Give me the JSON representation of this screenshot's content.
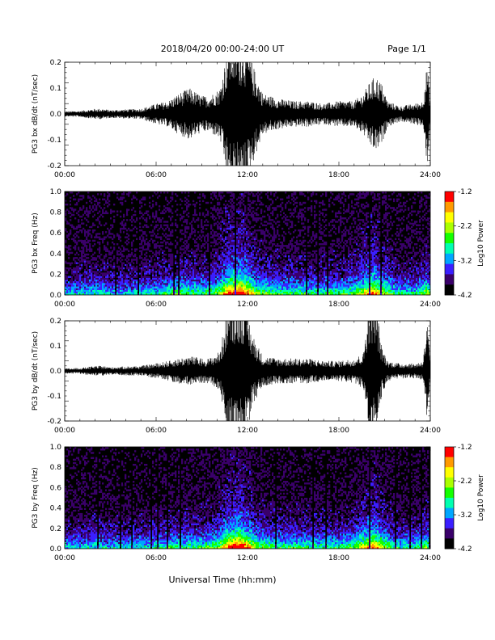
{
  "header": {
    "title": "2018/04/20  00:00-24:00 UT",
    "page": "Page 1/1"
  },
  "colors": {
    "trace": "#000000",
    "background": "#ffffff",
    "colormap": [
      "#000000",
      "#3a006a",
      "#3b1fff",
      "#00a6ff",
      "#00ffb0",
      "#14ff00",
      "#aaff00",
      "#ffff00",
      "#ff9a00",
      "#ff0000"
    ]
  },
  "chart_data": [
    {
      "type": "line",
      "ylabel": "PG3 bx dB/dt (nT/sec)",
      "xlabel": "",
      "x_ticks": [
        "00:00",
        "06:00",
        "12:00",
        "18:00",
        "24:00"
      ],
      "y_ticks": [
        "-0.2",
        "-0.1",
        "0.0",
        "0.1",
        "0.2"
      ],
      "xlim": [
        0,
        24
      ],
      "ylim": [
        -0.2,
        0.2
      ],
      "envelope": {
        "hours": [
          0,
          1,
          2,
          2.5,
          3,
          4,
          5,
          6,
          6.8,
          7.5,
          8.2,
          9,
          9.5,
          10.2,
          10.8,
          11.2,
          11.8,
          12.3,
          13,
          14,
          15,
          16,
          17,
          18,
          19,
          19.6,
          20,
          20.4,
          20.8,
          21.2,
          22,
          23,
          23.5,
          23.8,
          24
        ],
        "amplitude": [
          0.01,
          0.012,
          0.02,
          0.02,
          0.015,
          0.018,
          0.02,
          0.04,
          0.05,
          0.08,
          0.1,
          0.07,
          0.07,
          0.1,
          0.3,
          0.3,
          0.3,
          0.2,
          0.08,
          0.06,
          0.05,
          0.05,
          0.04,
          0.05,
          0.05,
          0.08,
          0.12,
          0.15,
          0.12,
          0.05,
          0.03,
          0.04,
          0.05,
          0.2,
          0.05
        ]
      }
    },
    {
      "type": "heatmap",
      "ylabel": "PG3 bx Freq (Hz)",
      "xlabel": "",
      "x_ticks": [
        "00:00",
        "06:00",
        "12:00",
        "18:00",
        "24:00"
      ],
      "y_ticks": [
        "0.0",
        "0.2",
        "0.4",
        "0.6",
        "0.8",
        "1.0"
      ],
      "xlim": [
        0,
        24
      ],
      "ylim": [
        0,
        1.0
      ],
      "colorbar": {
        "label": "Log10 Power",
        "ticks": [
          "-1.2",
          "-2.2",
          "-3.2",
          "-4.2"
        ],
        "range": [
          -4.2,
          -1.2
        ]
      },
      "activity": {
        "hours": [
          0,
          1,
          2,
          3,
          4,
          5,
          6,
          7,
          8,
          9,
          10,
          10.8,
          11.5,
          12,
          12.5,
          13,
          14,
          15,
          16,
          17,
          18,
          19,
          19.8,
          20.3,
          20.8,
          21.5,
          22,
          23,
          23.8,
          24
        ],
        "level": [
          0.3,
          0.3,
          0.35,
          0.3,
          0.3,
          0.32,
          0.35,
          0.4,
          0.42,
          0.4,
          0.45,
          0.75,
          0.85,
          0.7,
          0.5,
          0.45,
          0.4,
          0.4,
          0.38,
          0.38,
          0.38,
          0.42,
          0.6,
          0.7,
          0.55,
          0.4,
          0.35,
          0.35,
          0.5,
          0.35
        ]
      }
    },
    {
      "type": "line",
      "ylabel": "PG3 by dB/dt (nT/sec)",
      "xlabel": "",
      "x_ticks": [
        "00:00",
        "06:00",
        "12:00",
        "18:00",
        "24:00"
      ],
      "y_ticks": [
        "-0.2",
        "-0.1",
        "0.0",
        "0.1",
        "0.2"
      ],
      "xlim": [
        0,
        24
      ],
      "ylim": [
        -0.2,
        0.2
      ],
      "envelope": {
        "hours": [
          0,
          1,
          2,
          2.5,
          3,
          4,
          5,
          6,
          6.8,
          7.5,
          8.2,
          9,
          9.5,
          10.2,
          10.8,
          11.2,
          11.8,
          12.3,
          13,
          14,
          15,
          16,
          17,
          18,
          19,
          19.6,
          20,
          20.4,
          20.8,
          21.2,
          22,
          23,
          23.5,
          23.8,
          24
        ],
        "amplitude": [
          0.01,
          0.012,
          0.02,
          0.02,
          0.015,
          0.018,
          0.02,
          0.03,
          0.04,
          0.05,
          0.06,
          0.05,
          0.05,
          0.08,
          0.3,
          0.3,
          0.3,
          0.15,
          0.06,
          0.05,
          0.05,
          0.05,
          0.04,
          0.04,
          0.05,
          0.07,
          0.3,
          0.3,
          0.1,
          0.04,
          0.03,
          0.03,
          0.04,
          0.2,
          0.04
        ]
      }
    },
    {
      "type": "heatmap",
      "ylabel": "PG3 by Freq (Hz)",
      "xlabel": "Universal Time (hh:mm)",
      "x_ticks": [
        "00:00",
        "06:00",
        "12:00",
        "18:00",
        "24:00"
      ],
      "y_ticks": [
        "0.0",
        "0.2",
        "0.4",
        "0.6",
        "0.8",
        "1.0"
      ],
      "xlim": [
        0,
        24
      ],
      "ylim": [
        0,
        1.0
      ],
      "colorbar": {
        "label": "Log10 Power",
        "ticks": [
          "-1.2",
          "-2.2",
          "-3.2",
          "-4.2"
        ],
        "range": [
          -4.2,
          -1.2
        ]
      },
      "activity": {
        "hours": [
          0,
          1,
          2,
          3,
          4,
          5,
          6,
          7,
          8,
          9,
          10,
          10.8,
          11.5,
          12,
          12.5,
          13,
          14,
          15,
          16,
          17,
          18,
          19,
          19.8,
          20.3,
          20.8,
          21.5,
          22,
          23,
          23.8,
          24
        ],
        "level": [
          0.3,
          0.3,
          0.35,
          0.3,
          0.3,
          0.32,
          0.35,
          0.38,
          0.4,
          0.4,
          0.45,
          0.75,
          0.85,
          0.7,
          0.5,
          0.45,
          0.4,
          0.4,
          0.38,
          0.38,
          0.38,
          0.42,
          0.6,
          0.7,
          0.55,
          0.4,
          0.35,
          0.35,
          0.5,
          0.35
        ]
      }
    }
  ]
}
